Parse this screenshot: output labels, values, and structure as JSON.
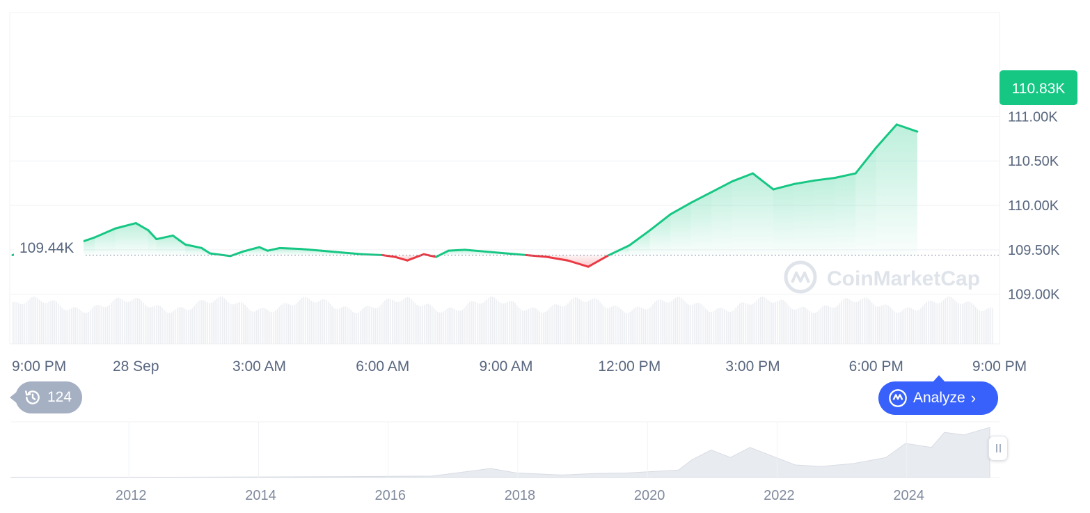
{
  "chart_data": {
    "type": "area",
    "y_axis": {
      "ticks": [
        "109.00K",
        "109.50K",
        "110.00K",
        "110.50K",
        "111.00K"
      ],
      "tick_values": [
        109000,
        109500,
        110000,
        110500,
        111000
      ],
      "ylim": [
        108990,
        111520
      ]
    },
    "x_axis": {
      "ticks": [
        "9:00 PM",
        "28 Sep",
        "3:00 AM",
        "6:00 AM",
        "9:00 AM",
        "12:00 PM",
        "3:00 PM",
        "6:00 PM",
        "9:00 PM"
      ],
      "tick_hours": [
        0,
        3,
        6,
        9,
        12,
        15,
        18,
        21,
        24
      ]
    },
    "baseline": {
      "label": "109.44K",
      "value": 109440
    },
    "current_price": {
      "label": "110.83K",
      "value": 110830
    },
    "price_points": [
      [
        0,
        109440
      ],
      [
        0.5,
        109520
      ],
      [
        1,
        109620
      ],
      [
        1.5,
        109560
      ],
      [
        2,
        109640
      ],
      [
        2.5,
        109740
      ],
      [
        3,
        109800
      ],
      [
        3.3,
        109720
      ],
      [
        3.5,
        109620
      ],
      [
        3.9,
        109660
      ],
      [
        4.2,
        109560
      ],
      [
        4.6,
        109520
      ],
      [
        4.8,
        109460
      ],
      [
        5.3,
        109430
      ],
      [
        5.6,
        109480
      ],
      [
        6,
        109530
      ],
      [
        6.2,
        109490
      ],
      [
        6.5,
        109520
      ],
      [
        7,
        109510
      ],
      [
        7.5,
        109490
      ],
      [
        8,
        109470
      ],
      [
        8.5,
        109450
      ],
      [
        9,
        109440
      ],
      [
        9.3,
        109420
      ],
      [
        9.6,
        109380
      ],
      [
        10,
        109450
      ],
      [
        10.3,
        109420
      ],
      [
        10.6,
        109490
      ],
      [
        11,
        109500
      ],
      [
        11.5,
        109480
      ],
      [
        12,
        109460
      ],
      [
        12.5,
        109440
      ],
      [
        13,
        109420
      ],
      [
        13.5,
        109380
      ],
      [
        14,
        109310
      ],
      [
        14.5,
        109440
      ],
      [
        15,
        109550
      ],
      [
        15.5,
        109720
      ],
      [
        16,
        109900
      ],
      [
        16.5,
        110030
      ],
      [
        17,
        110150
      ],
      [
        17.5,
        110270
      ],
      [
        18,
        110360
      ],
      [
        18.5,
        110180
      ],
      [
        19,
        110240
      ],
      [
        19.5,
        110280
      ],
      [
        20,
        110310
      ],
      [
        20.5,
        110360
      ],
      [
        21,
        110650
      ],
      [
        21.5,
        110910
      ],
      [
        22,
        110830
      ]
    ],
    "volume_bars": 520,
    "overview": {
      "x_ticks": [
        "2012",
        "2014",
        "2016",
        "2018",
        "2020",
        "2022",
        "2024"
      ],
      "series": [
        [
          2010.5,
          0.5
        ],
        [
          2012,
          0.5
        ],
        [
          2014,
          1
        ],
        [
          2016,
          2
        ],
        [
          2017,
          3
        ],
        [
          2017.9,
          18
        ],
        [
          2018.3,
          9
        ],
        [
          2019,
          5
        ],
        [
          2019.5,
          8
        ],
        [
          2020,
          9
        ],
        [
          2020.8,
          15
        ],
        [
          2021,
          35
        ],
        [
          2021.3,
          55
        ],
        [
          2021.6,
          40
        ],
        [
          2021.9,
          60
        ],
        [
          2022.3,
          40
        ],
        [
          2022.6,
          25
        ],
        [
          2023,
          22
        ],
        [
          2023.5,
          28
        ],
        [
          2024,
          40
        ],
        [
          2024.3,
          68
        ],
        [
          2024.7,
          60
        ],
        [
          2024.9,
          90
        ],
        [
          2025.2,
          85
        ],
        [
          2025.6,
          100
        ]
      ]
    }
  },
  "watermark": "CoinMarketCap",
  "history_count": "124",
  "analyze_label": "Analyze",
  "colors": {
    "up": "#16c784",
    "down": "#ea3943",
    "accent": "#3861fb",
    "grid": "#eff2f5"
  }
}
